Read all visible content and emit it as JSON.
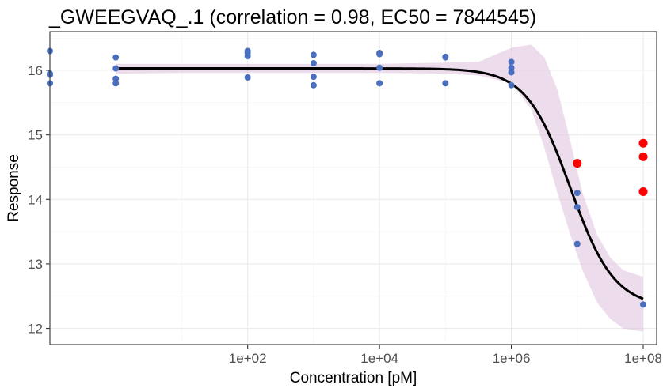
{
  "chart_data": {
    "type": "scatter",
    "title": "_GWEEGVAQ_.1 (correlation = 0.98, EC50 = 7844545)",
    "xlabel": "Concentration [pM]",
    "ylabel": "Response",
    "x_scale": "log10",
    "xlim": [
      0.1,
      160000000
    ],
    "ylim": [
      11.75,
      16.6
    ],
    "x_ticks": [
      {
        "value": 100,
        "label": "1e+02"
      },
      {
        "value": 10000,
        "label": "1e+04"
      },
      {
        "value": 1000000,
        "label": "1e+06"
      },
      {
        "value": 100000000,
        "label": "1e+08"
      }
    ],
    "y_ticks": [
      {
        "value": 12,
        "label": "12"
      },
      {
        "value": 13,
        "label": "13"
      },
      {
        "value": 14,
        "label": "14"
      },
      {
        "value": 15,
        "label": "15"
      },
      {
        "value": 16,
        "label": "16"
      }
    ],
    "grid": true,
    "colors": {
      "points": "#4a6fbf",
      "outliers": "#ff0000",
      "fit": "#000000",
      "ribbon": "#dcbfdc"
    },
    "points": [
      {
        "x": 0.1,
        "y": 16.3
      },
      {
        "x": 0.1,
        "y": 15.95
      },
      {
        "x": 0.1,
        "y": 15.93
      },
      {
        "x": 0.1,
        "y": 15.8
      },
      {
        "x": 1,
        "y": 16.2
      },
      {
        "x": 1,
        "y": 16.03
      },
      {
        "x": 1,
        "y": 15.87
      },
      {
        "x": 1,
        "y": 15.8
      },
      {
        "x": 100,
        "y": 16.3
      },
      {
        "x": 100,
        "y": 16.27
      },
      {
        "x": 100,
        "y": 16.22
      },
      {
        "x": 100,
        "y": 15.89
      },
      {
        "x": 1000,
        "y": 16.24
      },
      {
        "x": 1000,
        "y": 16.11
      },
      {
        "x": 1000,
        "y": 15.9
      },
      {
        "x": 1000,
        "y": 15.77
      },
      {
        "x": 10000,
        "y": 16.27
      },
      {
        "x": 10000,
        "y": 16.25
      },
      {
        "x": 10000,
        "y": 16.04
      },
      {
        "x": 10000,
        "y": 15.8
      },
      {
        "x": 100000,
        "y": 16.21
      },
      {
        "x": 100000,
        "y": 16.2
      },
      {
        "x": 100000,
        "y": 15.8
      },
      {
        "x": 1000000,
        "y": 16.13
      },
      {
        "x": 1000000,
        "y": 16.04
      },
      {
        "x": 1000000,
        "y": 15.97
      },
      {
        "x": 1000000,
        "y": 15.77
      },
      {
        "x": 10000000,
        "y": 14.1
      },
      {
        "x": 10000000,
        "y": 13.88
      },
      {
        "x": 10000000,
        "y": 13.31
      },
      {
        "x": 100000000,
        "y": 12.37
      }
    ],
    "outliers": [
      {
        "x": 10000000,
        "y": 14.56
      },
      {
        "x": 100000000,
        "y": 14.87
      },
      {
        "x": 100000000,
        "y": 14.66
      },
      {
        "x": 100000000,
        "y": 14.12
      }
    ],
    "fit": {
      "top": 16.03,
      "bottom": 12.33,
      "ec50": 7844545,
      "hill": 1.3
    },
    "ribbon": [
      {
        "x": 1,
        "lo": 15.95,
        "hi": 16.1
      },
      {
        "x": 10,
        "lo": 15.96,
        "hi": 16.1
      },
      {
        "x": 100,
        "lo": 15.96,
        "hi": 16.1
      },
      {
        "x": 1000,
        "lo": 15.96,
        "hi": 16.1
      },
      {
        "x": 10000,
        "lo": 15.96,
        "hi": 16.1
      },
      {
        "x": 100000,
        "lo": 15.95,
        "hi": 16.12
      },
      {
        "x": 316228,
        "lo": 15.92,
        "hi": 16.13
      },
      {
        "x": 1000000,
        "lo": 15.8,
        "hi": 16.35
      },
      {
        "x": 2000000,
        "lo": 15.4,
        "hi": 16.4
      },
      {
        "x": 3162278,
        "lo": 14.8,
        "hi": 16.2
      },
      {
        "x": 5000000,
        "lo": 14.1,
        "hi": 15.7
      },
      {
        "x": 7844545,
        "lo": 13.45,
        "hi": 14.9
      },
      {
        "x": 12000000,
        "lo": 12.9,
        "hi": 14.1
      },
      {
        "x": 20000000,
        "lo": 12.4,
        "hi": 13.45
      },
      {
        "x": 31622777,
        "lo": 12.15,
        "hi": 13.1
      },
      {
        "x": 50000000,
        "lo": 12.0,
        "hi": 12.9
      },
      {
        "x": 100000000,
        "lo": 11.95,
        "hi": 12.8
      }
    ]
  }
}
